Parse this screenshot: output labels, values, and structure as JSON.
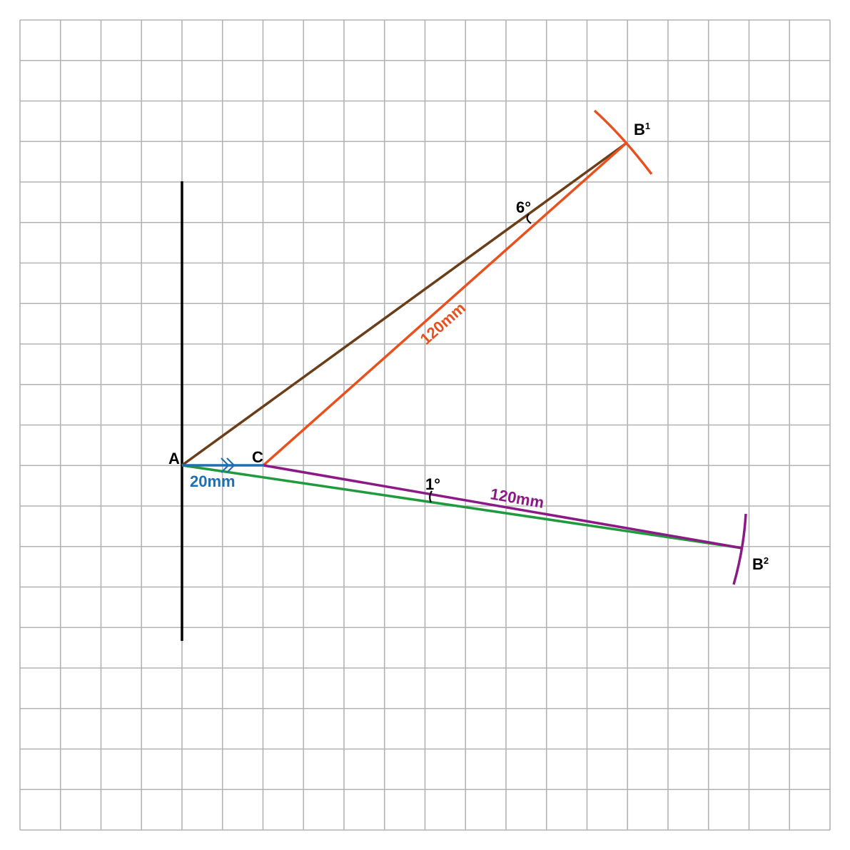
{
  "points": {
    "a_label": "A",
    "c_label": "C",
    "b1_label": "B",
    "b1_sup": "1",
    "b2_label": "B",
    "b2_sup": "2"
  },
  "measurements": {
    "ac_length": "20mm",
    "cb1_length": "120mm",
    "cb2_length": "120mm",
    "angle_b1": "6°",
    "angle_b2": "1°"
  },
  "colors": {
    "grid": "#b3b3b3",
    "baseline": "#000000",
    "ac_segment": "#1f6fb4",
    "ab1_line": "#6b3e1a",
    "cb1_line": "#e8501e",
    "cb2_line": "#8b1a86",
    "ab2_line": "#1f9a3c"
  }
}
